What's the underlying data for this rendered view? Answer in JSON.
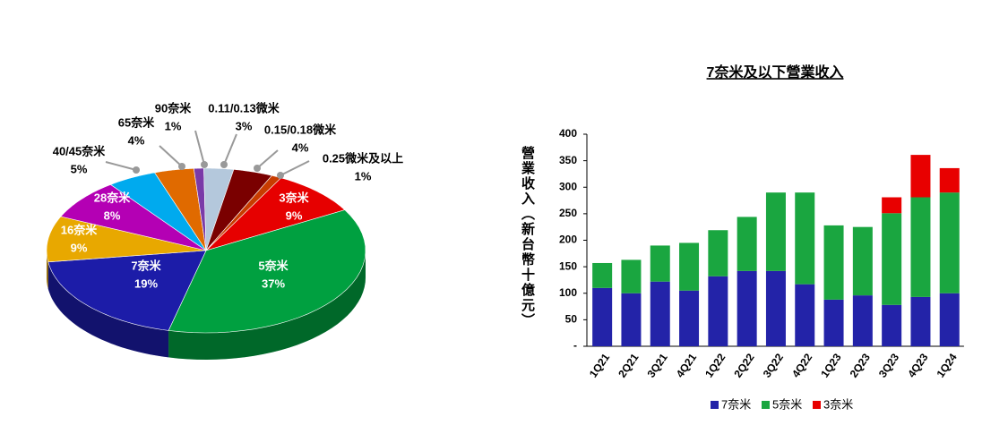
{
  "chart_data": [
    {
      "type": "pie",
      "categories": [
        "3奈米",
        "5奈米",
        "7奈米",
        "16奈米",
        "28奈米",
        "40/45奈米",
        "65奈米",
        "90奈米",
        "0.11/0.13微米",
        "0.15/0.18微米",
        "0.25微米及以上"
      ],
      "values": [
        9,
        37,
        19,
        9,
        8,
        5,
        4,
        1,
        3,
        4,
        1
      ],
      "value_labels": [
        "9%",
        "37%",
        "19%",
        "9%",
        "8%",
        "5%",
        "4%",
        "1%",
        "3%",
        "4%",
        "1%"
      ],
      "colors": [
        "#e60000",
        "#00a040",
        "#1c1ca8",
        "#e8a800",
        "#b400b4",
        "#00aaee",
        "#e06a00",
        "#7a3aa8",
        "#b4c8dc",
        "#7a0000",
        "#c83c00"
      ]
    },
    {
      "type": "bar",
      "title": "7奈米及以下營業收入",
      "y_label": "營業收入（新台幣十億元）",
      "categories": [
        "1Q21",
        "2Q21",
        "3Q21",
        "4Q21",
        "1Q22",
        "2Q22",
        "3Q22",
        "4Q22",
        "1Q23",
        "2Q23",
        "3Q23",
        "4Q23",
        "1Q24"
      ],
      "series": [
        {
          "name": "7奈米",
          "color": "#2323a8",
          "values": [
            110,
            100,
            122,
            105,
            132,
            142,
            142,
            117,
            88,
            96,
            78,
            93,
            100
          ]
        },
        {
          "name": "5奈米",
          "color": "#1aa640",
          "values": [
            47,
            63,
            68,
            90,
            87,
            102,
            148,
            173,
            140,
            129,
            173,
            188,
            190
          ]
        },
        {
          "name": "3奈米",
          "color": "#e80000",
          "values": [
            null,
            null,
            null,
            null,
            null,
            null,
            null,
            null,
            null,
            null,
            30,
            80,
            46
          ]
        }
      ],
      "ylim": [
        0,
        400
      ],
      "yticks": [
        {
          "value": 0,
          "label": "-"
        },
        50,
        100,
        150,
        200,
        250,
        300,
        350,
        400
      ]
    }
  ]
}
